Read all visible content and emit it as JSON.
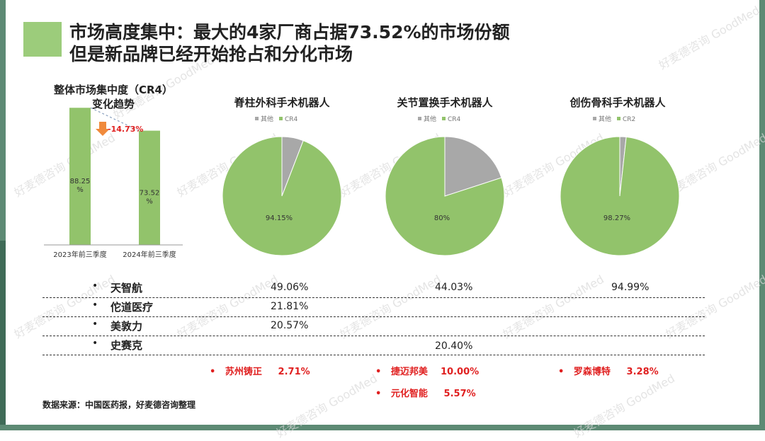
{
  "title": {
    "line1": "市场高度集中：最大的4家厂商占据73.52%的市场份额",
    "line2": "但是新品牌已经开始抢占和分化市场"
  },
  "colors": {
    "green": "#92c36b",
    "gray": "#a8a8a8",
    "red": "#e02020",
    "accent_square": "#9ccc7b"
  },
  "watermark": "好麦德咨询 GoodMed",
  "chart_data": [
    {
      "type": "bar",
      "title_line1": "整体市场集中度（CR4）",
      "title_line2": "变化趋势",
      "categories": [
        "2023年前三季度",
        "2024年前三季度"
      ],
      "values": [
        88.25,
        73.52
      ],
      "value_labels": [
        "88.25\n%",
        "73.52\n%"
      ],
      "change_label": "-14.73%",
      "ylim": [
        0,
        100
      ]
    },
    {
      "type": "pie",
      "title": "脊柱外科手术机器人",
      "legend": [
        "其他",
        "CR4"
      ],
      "values": [
        5.85,
        94.15
      ],
      "label": "94.15%"
    },
    {
      "type": "pie",
      "title": "关节置换手术机器人",
      "legend": [
        "其他",
        "CR4"
      ],
      "values": [
        20,
        80
      ],
      "label": "80%"
    },
    {
      "type": "pie",
      "title": "创伤骨科手术机器人",
      "legend": [
        "其他",
        "CR2"
      ],
      "values": [
        1.73,
        98.27
      ],
      "label": "98.27%"
    }
  ],
  "table": {
    "rows": [
      {
        "bullet": "•",
        "name": "天智航",
        "spine": "49.06%",
        "joint": "44.03%",
        "trauma": "94.99%"
      },
      {
        "bullet": "•",
        "name": "佗道医疗",
        "spine": "21.81%",
        "joint": "",
        "trauma": ""
      },
      {
        "bullet": "•",
        "name": "美敦力",
        "spine": "20.57%",
        "joint": "",
        "trauma": ""
      },
      {
        "bullet": "•",
        "name": "史赛克",
        "spine": "",
        "joint": "20.40%",
        "trauma": ""
      }
    ],
    "newcomers": {
      "spine": [
        {
          "name": "苏州铸正",
          "value": "2.71%"
        }
      ],
      "joint": [
        {
          "name": "捷迈邦美",
          "value": "10.00%"
        },
        {
          "name": "元化智能",
          "value": "5.57%"
        }
      ],
      "trauma": [
        {
          "name": "罗森博特",
          "value": "3.28%"
        }
      ]
    }
  },
  "source": "数据来源：中国医药报，好麦德咨询整理"
}
